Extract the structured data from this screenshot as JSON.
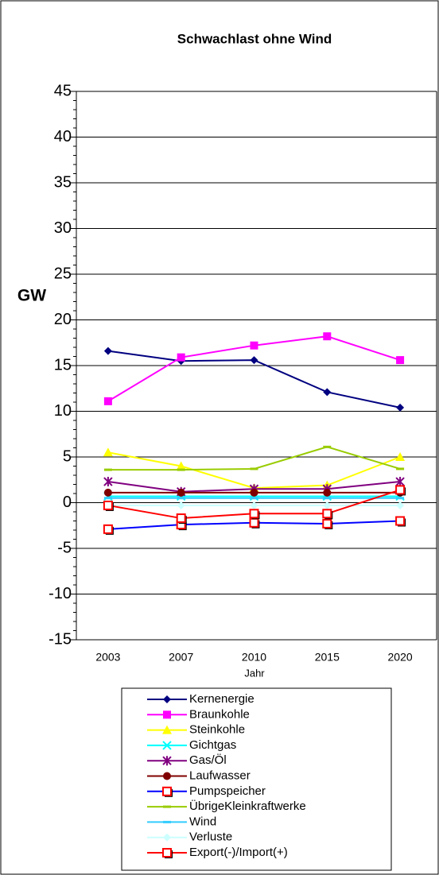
{
  "chart_data": {
    "type": "line",
    "title": "Schwachlast ohne Wind",
    "x_label": "Jahr",
    "y_label": "GW",
    "categories": [
      "2003",
      "2007",
      "2010",
      "2015",
      "2020"
    ],
    "ylim": [
      -15,
      45
    ],
    "yticks": [
      -15,
      -10,
      -5,
      0,
      5,
      10,
      15,
      20,
      25,
      30,
      35,
      40,
      45
    ],
    "grid": true,
    "series": [
      {
        "name": "Kernenergie",
        "color": "#000080",
        "marker": "diamond",
        "values": [
          16.6,
          15.5,
          15.6,
          12.1,
          10.4
        ]
      },
      {
        "name": "Braunkohle",
        "color": "#ff00ff",
        "marker": "square",
        "values": [
          11.1,
          15.9,
          17.2,
          18.2,
          15.6
        ]
      },
      {
        "name": "Steinkohle",
        "color": "#ffff00",
        "marker": "triangle",
        "values": [
          5.5,
          4.0,
          1.6,
          1.9,
          5.0
        ]
      },
      {
        "name": "Gichtgas",
        "color": "#00ffff",
        "marker": "x",
        "values": [
          0.7,
          0.7,
          0.7,
          0.7,
          0.7
        ]
      },
      {
        "name": "Gas/Öl",
        "color": "#800080",
        "marker": "star",
        "values": [
          2.3,
          1.2,
          1.5,
          1.5,
          2.3
        ]
      },
      {
        "name": "Laufwasser",
        "color": "#800000",
        "marker": "circle",
        "values": [
          1.1,
          1.1,
          1.1,
          1.1,
          1.1
        ]
      },
      {
        "name": "Pumpspeicher",
        "color": "#0000ff",
        "marker": "square-open",
        "marker_color": "#ff0000",
        "values": [
          -2.9,
          -2.4,
          -2.2,
          -2.3,
          -2.0
        ]
      },
      {
        "name": "ÜbrigeKleinkraftwerke",
        "color": "#99cc00",
        "marker": "dash",
        "values": [
          3.6,
          3.6,
          3.7,
          6.1,
          3.7
        ]
      },
      {
        "name": "Wind",
        "color": "#33ccff",
        "marker": "dash",
        "values": [
          0.5,
          0.5,
          0.5,
          0.5,
          0.5
        ]
      },
      {
        "name": "Verluste",
        "color": "#ccffff",
        "marker": "diamond",
        "values": [
          -0.3,
          -0.3,
          -0.3,
          -0.3,
          -0.3
        ]
      },
      {
        "name": "Export(-)/Import(+)",
        "color": "#ff0000",
        "marker": "square-open",
        "values": [
          -0.3,
          -1.7,
          -1.2,
          -1.2,
          1.4
        ]
      }
    ]
  }
}
